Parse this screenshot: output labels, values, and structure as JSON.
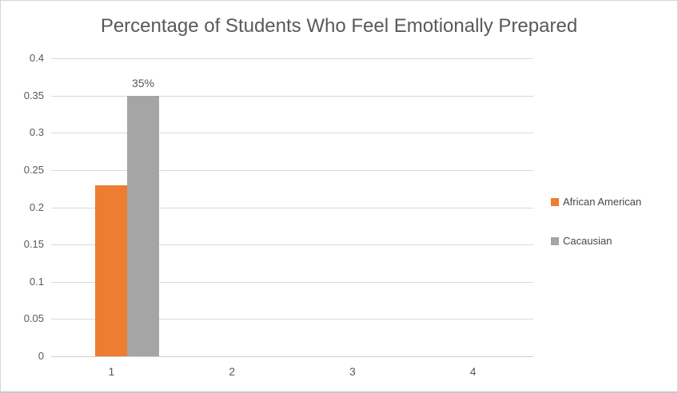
{
  "chart_data": {
    "type": "bar",
    "title": "Percentage of Students Who Feel Emotionally Prepared",
    "categories": [
      "1",
      "2",
      "3",
      "4"
    ],
    "series": [
      {
        "name": "African American",
        "color": "#ED7D31",
        "values": [
          0.23,
          null,
          null,
          null
        ],
        "data_labels": [
          null,
          null,
          null,
          null
        ]
      },
      {
        "name": "Cacausian",
        "color": "#A5A5A5",
        "values": [
          0.35,
          null,
          null,
          null
        ],
        "data_labels": [
          "35%",
          null,
          null,
          null
        ]
      }
    ],
    "xlabel": "",
    "ylabel": "",
    "ylim": [
      0,
      0.4
    ],
    "ytick_step": 0.05,
    "ytick_labels": [
      "0",
      "0.05",
      "0.1",
      "0.15",
      "0.2",
      "0.25",
      "0.3",
      "0.35",
      "0.4"
    ],
    "grid": true,
    "legend_position": "right",
    "colors": {
      "gridline": "#D9D9D9",
      "axis_line": "#CFCFCF",
      "axis_text": "#595959",
      "title_text": "#595959",
      "data_label_text": "#595959",
      "frame_border": "#D6D6D6"
    }
  }
}
